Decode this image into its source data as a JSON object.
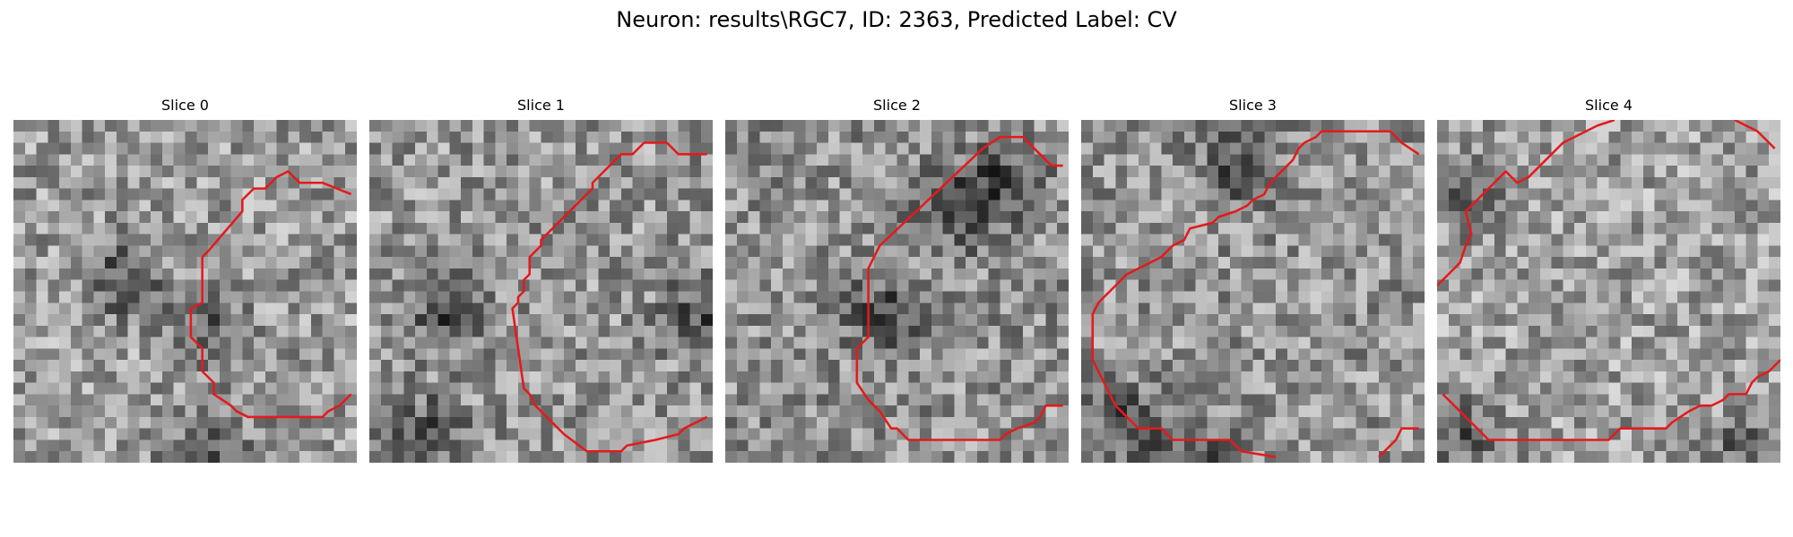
{
  "figure": {
    "title": "Neuron: results\\RGC7, ID: 2363, Predicted Label: CV"
  },
  "slices": [
    {
      "title": "Slice 0",
      "seed": 11,
      "base": 155,
      "darkX": [
        0.3,
        0.55,
        0.55
      ],
      "darkY": [
        0.45,
        0.6,
        0.95
      ]
    },
    {
      "title": "Slice 1",
      "seed": 23,
      "base": 150,
      "darkX": [
        0.2,
        0.15,
        0.95
      ],
      "darkY": [
        0.55,
        0.9,
        0.55
      ]
    },
    {
      "title": "Slice 2",
      "seed": 37,
      "base": 145,
      "darkX": [
        0.8,
        0.65,
        0.45
      ],
      "darkY": [
        0.15,
        0.25,
        0.55
      ]
    },
    {
      "title": "Slice 3",
      "seed": 49,
      "base": 148,
      "darkX": [
        0.45,
        0.1,
        0.3
      ],
      "darkY": [
        0.12,
        0.85,
        0.98
      ]
    },
    {
      "title": "Slice 4",
      "seed": 61,
      "base": 160,
      "darkX": [
        0.1,
        0.05,
        0.9
      ],
      "darkY": [
        0.2,
        0.9,
        0.95
      ]
    }
  ],
  "contour_color": "#e41a1c"
}
